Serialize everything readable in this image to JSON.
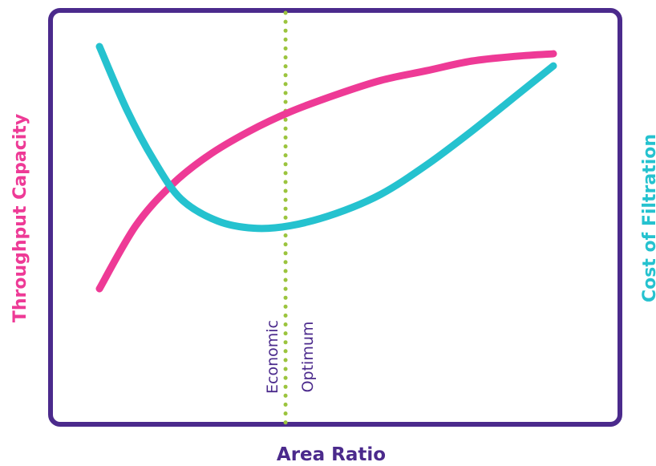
{
  "chart_data": {
    "type": "line",
    "xlabel": "Area Ratio",
    "ylabel_left": "Throughput Capacity",
    "ylabel_right": "Cost of Filtration",
    "series": [
      {
        "name": "Throughput Capacity",
        "axis": "left",
        "color": "#ee3a96",
        "points": [
          [
            0.0,
            0.0
          ],
          [
            0.08,
            0.26
          ],
          [
            0.16,
            0.43
          ],
          [
            0.24,
            0.55
          ],
          [
            0.33,
            0.65
          ],
          [
            0.42,
            0.73
          ],
          [
            0.52,
            0.8
          ],
          [
            0.62,
            0.86
          ],
          [
            0.72,
            0.9
          ],
          [
            0.82,
            0.94
          ],
          [
            0.92,
            0.96
          ],
          [
            1.0,
            0.97
          ]
        ]
      },
      {
        "name": "Cost of Filtration",
        "axis": "right",
        "color": "#25c2cf",
        "points": [
          [
            0.0,
            1.0
          ],
          [
            0.06,
            0.74
          ],
          [
            0.12,
            0.53
          ],
          [
            0.18,
            0.37
          ],
          [
            0.26,
            0.28
          ],
          [
            0.34,
            0.25
          ],
          [
            0.42,
            0.26
          ],
          [
            0.52,
            0.31
          ],
          [
            0.62,
            0.39
          ],
          [
            0.72,
            0.51
          ],
          [
            0.82,
            0.65
          ],
          [
            0.92,
            0.8
          ],
          [
            1.0,
            0.92
          ]
        ]
      }
    ],
    "annotation": {
      "line1": "Economic",
      "line2": "Optimum",
      "x": 0.41,
      "color": "#9bc43d"
    },
    "frame_color": "#4b2a8c",
    "grid": false,
    "legend": false
  }
}
